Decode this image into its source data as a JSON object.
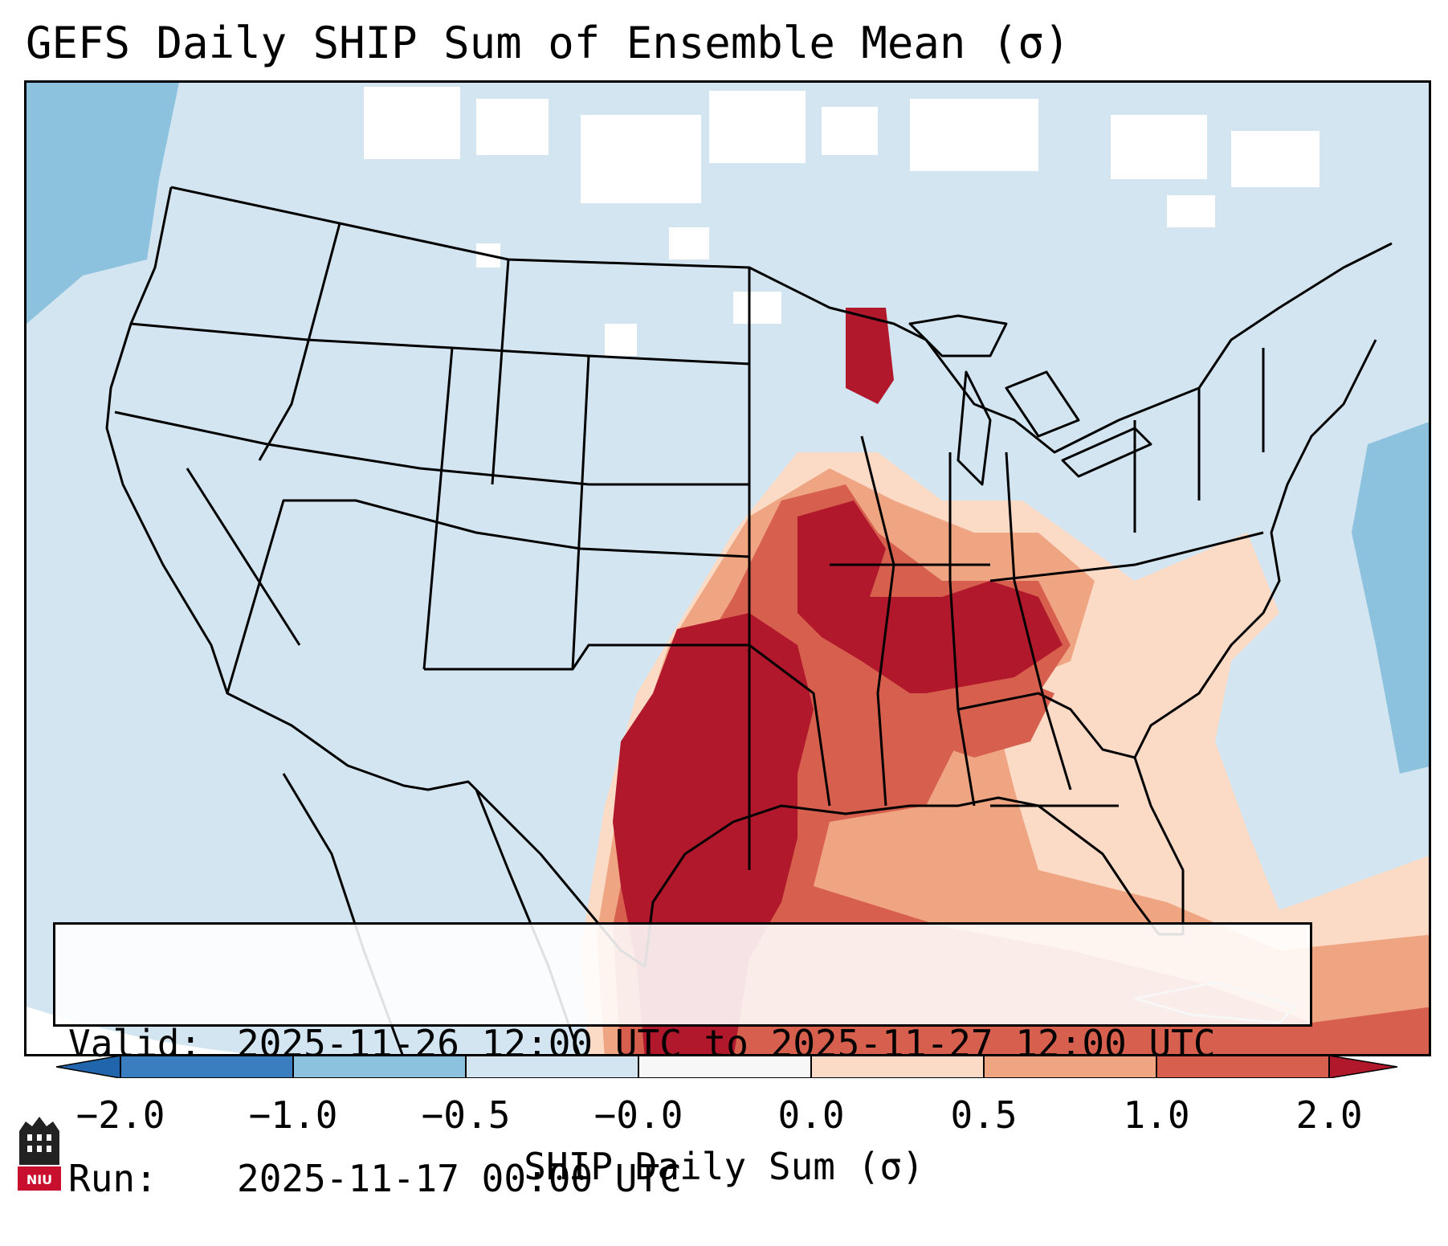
{
  "title": "GEFS Daily SHIP Sum of Ensemble Mean (σ)",
  "info": {
    "valid_key": "Valid:",
    "valid_value": "2025-11-26 12:00 UTC to 2025-11-27 12:00 UTC",
    "run_key": "Run:",
    "run_value": "2025-11-17 00:00 UTC"
  },
  "colorbar": {
    "label": "SHIP Daily Sum (σ)",
    "ticks": [
      "−2.0",
      "−1.0",
      "−0.5",
      "−0.0",
      "0.0",
      "0.5",
      "1.0",
      "2.0"
    ],
    "colors": [
      "#3a7ebf",
      "#8dc2de",
      "#d2e5f0",
      "#f7f7f7",
      "#fbdac6",
      "#f0a582",
      "#d6604d",
      "#b2182b"
    ]
  },
  "colors": {
    "ocean_neg": "#8dc2de",
    "land_neg": "#d2e5f0",
    "neutral": "#ffffff",
    "light_pos": "#fbdac6",
    "mid_pos": "#f0a582",
    "high_pos": "#d6604d",
    "max_pos": "#b2182b",
    "border": "#000000"
  },
  "logo": {
    "text": "NIU",
    "color": "#c8102e"
  }
}
